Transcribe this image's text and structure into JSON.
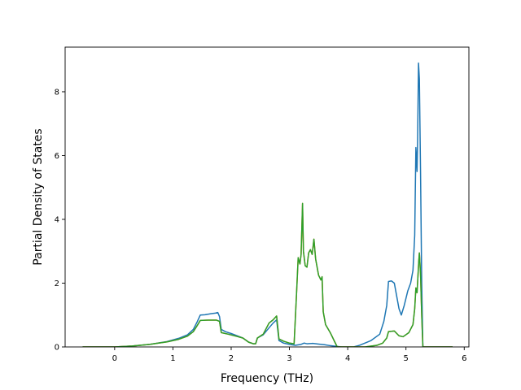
{
  "chart_data": {
    "type": "line",
    "title": "",
    "xlabel": "Frequency (THz)",
    "ylabel": "Partial Density of States",
    "xlim": [
      -0.85,
      6.08
    ],
    "ylim": [
      0,
      9.4
    ],
    "x_ticks": [
      0,
      1,
      2,
      3,
      4,
      5,
      6
    ],
    "y_ticks": [
      0,
      2,
      4,
      6,
      8
    ],
    "grid": false,
    "legend": "none",
    "series": [
      {
        "color": "#1f77b4",
        "points": [
          [
            -0.55,
            0
          ],
          [
            0.0,
            0.0
          ],
          [
            0.3,
            0.03
          ],
          [
            0.6,
            0.08
          ],
          [
            0.9,
            0.17
          ],
          [
            1.1,
            0.27
          ],
          [
            1.25,
            0.38
          ],
          [
            1.35,
            0.55
          ],
          [
            1.42,
            0.8
          ],
          [
            1.47,
            1.0
          ],
          [
            1.55,
            1.01
          ],
          [
            1.65,
            1.04
          ],
          [
            1.73,
            1.06
          ],
          [
            1.77,
            1.08
          ],
          [
            1.8,
            0.95
          ],
          [
            1.83,
            0.55
          ],
          [
            1.9,
            0.48
          ],
          [
            2.0,
            0.42
          ],
          [
            2.1,
            0.35
          ],
          [
            2.2,
            0.28
          ],
          [
            2.3,
            0.15
          ],
          [
            2.38,
            0.1
          ],
          [
            2.42,
            0.1
          ],
          [
            2.45,
            0.28
          ],
          [
            2.55,
            0.38
          ],
          [
            2.65,
            0.6
          ],
          [
            2.72,
            0.75
          ],
          [
            2.78,
            0.85
          ],
          [
            2.82,
            0.2
          ],
          [
            2.9,
            0.12
          ],
          [
            3.0,
            0.08
          ],
          [
            3.1,
            0.05
          ],
          [
            3.2,
            0.08
          ],
          [
            3.25,
            0.12
          ],
          [
            3.3,
            0.1
          ],
          [
            3.4,
            0.11
          ],
          [
            3.5,
            0.09
          ],
          [
            3.6,
            0.07
          ],
          [
            3.7,
            0.04
          ],
          [
            3.8,
            0.02
          ],
          [
            3.9,
            0.0
          ],
          [
            4.1,
            0.0
          ],
          [
            4.2,
            0.05
          ],
          [
            4.4,
            0.2
          ],
          [
            4.55,
            0.4
          ],
          [
            4.62,
            0.8
          ],
          [
            4.67,
            1.3
          ],
          [
            4.7,
            2.05
          ],
          [
            4.75,
            2.07
          ],
          [
            4.8,
            2.0
          ],
          [
            4.84,
            1.6
          ],
          [
            4.88,
            1.2
          ],
          [
            4.92,
            1.0
          ],
          [
            4.97,
            1.3
          ],
          [
            5.03,
            1.75
          ],
          [
            5.08,
            2.0
          ],
          [
            5.12,
            2.4
          ],
          [
            5.15,
            3.5
          ],
          [
            5.17,
            6.25
          ],
          [
            5.18,
            5.95
          ],
          [
            5.19,
            5.5
          ],
          [
            5.2,
            6.5
          ],
          [
            5.215,
            8.9
          ],
          [
            5.23,
            8.4
          ],
          [
            5.25,
            5.5
          ],
          [
            5.27,
            2.0
          ],
          [
            5.29,
            0.0
          ],
          [
            5.8,
            0.0
          ]
        ]
      },
      {
        "color": "#ff7f0e",
        "points": [
          [
            -0.55,
            0
          ],
          [
            0.0,
            0.0
          ],
          [
            0.3,
            0.03
          ],
          [
            0.6,
            0.08
          ],
          [
            0.9,
            0.16
          ],
          [
            1.1,
            0.24
          ],
          [
            1.25,
            0.34
          ],
          [
            1.35,
            0.48
          ],
          [
            1.42,
            0.68
          ],
          [
            1.47,
            0.83
          ],
          [
            1.6,
            0.84
          ],
          [
            1.75,
            0.84
          ],
          [
            1.8,
            0.8
          ],
          [
            1.83,
            0.45
          ],
          [
            1.95,
            0.4
          ],
          [
            2.1,
            0.33
          ],
          [
            2.2,
            0.28
          ],
          [
            2.3,
            0.15
          ],
          [
            2.38,
            0.1
          ],
          [
            2.42,
            0.1
          ],
          [
            2.45,
            0.28
          ],
          [
            2.55,
            0.4
          ],
          [
            2.65,
            0.75
          ],
          [
            2.72,
            0.85
          ],
          [
            2.78,
            0.97
          ],
          [
            2.82,
            0.25
          ],
          [
            2.9,
            0.18
          ],
          [
            3.0,
            0.12
          ],
          [
            3.08,
            0.1
          ],
          [
            3.12,
            1.6
          ],
          [
            3.15,
            2.8
          ],
          [
            3.18,
            2.6
          ],
          [
            3.2,
            2.9
          ],
          [
            3.225,
            4.5
          ],
          [
            3.24,
            3.0
          ],
          [
            3.27,
            2.55
          ],
          [
            3.3,
            2.5
          ],
          [
            3.33,
            2.95
          ],
          [
            3.36,
            3.05
          ],
          [
            3.39,
            2.9
          ],
          [
            3.42,
            3.38
          ],
          [
            3.45,
            2.75
          ],
          [
            3.5,
            2.25
          ],
          [
            3.54,
            2.1
          ],
          [
            3.56,
            2.2
          ],
          [
            3.58,
            1.1
          ],
          [
            3.62,
            0.7
          ],
          [
            3.7,
            0.45
          ],
          [
            3.78,
            0.15
          ],
          [
            3.82,
            0.0
          ],
          [
            4.3,
            0.0
          ],
          [
            4.5,
            0.05
          ],
          [
            4.6,
            0.12
          ],
          [
            4.67,
            0.28
          ],
          [
            4.7,
            0.48
          ],
          [
            4.8,
            0.5
          ],
          [
            4.88,
            0.35
          ],
          [
            4.95,
            0.32
          ],
          [
            5.05,
            0.45
          ],
          [
            5.12,
            0.7
          ],
          [
            5.15,
            1.2
          ],
          [
            5.17,
            1.85
          ],
          [
            5.19,
            1.7
          ],
          [
            5.22,
            2.7
          ],
          [
            5.23,
            2.95
          ],
          [
            5.25,
            2.3
          ],
          [
            5.27,
            1.0
          ],
          [
            5.29,
            0.0
          ],
          [
            5.8,
            0.0
          ]
        ]
      },
      {
        "color": "#2ca02c",
        "points": [
          [
            -0.55,
            0
          ],
          [
            0.0,
            0.0
          ],
          [
            0.3,
            0.03
          ],
          [
            0.6,
            0.08
          ],
          [
            0.9,
            0.16
          ],
          [
            1.1,
            0.24
          ],
          [
            1.25,
            0.34
          ],
          [
            1.35,
            0.48
          ],
          [
            1.42,
            0.68
          ],
          [
            1.47,
            0.83
          ],
          [
            1.6,
            0.84
          ],
          [
            1.75,
            0.84
          ],
          [
            1.8,
            0.8
          ],
          [
            1.83,
            0.45
          ],
          [
            1.95,
            0.4
          ],
          [
            2.1,
            0.33
          ],
          [
            2.2,
            0.28
          ],
          [
            2.3,
            0.15
          ],
          [
            2.38,
            0.1
          ],
          [
            2.42,
            0.1
          ],
          [
            2.45,
            0.28
          ],
          [
            2.55,
            0.4
          ],
          [
            2.65,
            0.75
          ],
          [
            2.72,
            0.85
          ],
          [
            2.78,
            0.97
          ],
          [
            2.82,
            0.25
          ],
          [
            2.9,
            0.18
          ],
          [
            3.0,
            0.12
          ],
          [
            3.08,
            0.1
          ],
          [
            3.12,
            1.6
          ],
          [
            3.15,
            2.8
          ],
          [
            3.18,
            2.6
          ],
          [
            3.2,
            2.9
          ],
          [
            3.225,
            4.5
          ],
          [
            3.24,
            3.0
          ],
          [
            3.27,
            2.55
          ],
          [
            3.3,
            2.5
          ],
          [
            3.33,
            2.95
          ],
          [
            3.36,
            3.05
          ],
          [
            3.39,
            2.9
          ],
          [
            3.42,
            3.38
          ],
          [
            3.45,
            2.75
          ],
          [
            3.5,
            2.25
          ],
          [
            3.54,
            2.1
          ],
          [
            3.56,
            2.2
          ],
          [
            3.58,
            1.1
          ],
          [
            3.62,
            0.7
          ],
          [
            3.7,
            0.45
          ],
          [
            3.78,
            0.15
          ],
          [
            3.82,
            0.0
          ],
          [
            4.3,
            0.0
          ],
          [
            4.5,
            0.05
          ],
          [
            4.6,
            0.12
          ],
          [
            4.67,
            0.28
          ],
          [
            4.7,
            0.48
          ],
          [
            4.8,
            0.5
          ],
          [
            4.88,
            0.35
          ],
          [
            4.95,
            0.32
          ],
          [
            5.05,
            0.45
          ],
          [
            5.12,
            0.7
          ],
          [
            5.15,
            1.2
          ],
          [
            5.17,
            1.85
          ],
          [
            5.19,
            1.7
          ],
          [
            5.22,
            2.7
          ],
          [
            5.23,
            2.95
          ],
          [
            5.25,
            2.3
          ],
          [
            5.27,
            1.0
          ],
          [
            5.29,
            0.0
          ],
          [
            5.8,
            0.0
          ]
        ]
      }
    ]
  }
}
